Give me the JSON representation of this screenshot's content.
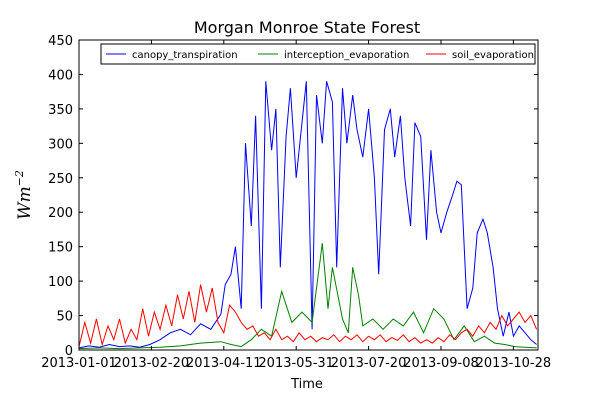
{
  "chart_data": {
    "type": "line",
    "title": "Morgan Monroe State Forest",
    "xlabel": "Time",
    "ylabel": "Wm",
    "ylabel_superscript": "−2",
    "x_start": "2013-01-01",
    "x_end": "2013-11-14",
    "ylim": [
      0,
      450
    ],
    "yticks": [
      0,
      50,
      100,
      150,
      200,
      250,
      300,
      350,
      400,
      450
    ],
    "xticks": [
      "2013-01-01",
      "2013-02-20",
      "2013-04-11",
      "2013-05-31",
      "2013-07-20",
      "2013-09-08",
      "2013-10-28"
    ],
    "legend_position": "top",
    "grid": false,
    "series": [
      {
        "name": "canopy_transpiration",
        "color": "#0000ff",
        "points": [
          [
            "2013-01-01",
            3
          ],
          [
            "2013-01-08",
            6
          ],
          [
            "2013-01-15",
            4
          ],
          [
            "2013-01-22",
            8
          ],
          [
            "2013-01-29",
            5
          ],
          [
            "2013-02-05",
            6
          ],
          [
            "2013-02-12",
            4
          ],
          [
            "2013-02-19",
            8
          ],
          [
            "2013-02-26",
            15
          ],
          [
            "2013-03-05",
            25
          ],
          [
            "2013-03-12",
            30
          ],
          [
            "2013-03-19",
            22
          ],
          [
            "2013-03-26",
            38
          ],
          [
            "2013-04-02",
            30
          ],
          [
            "2013-04-09",
            52
          ],
          [
            "2013-04-12",
            95
          ],
          [
            "2013-04-16",
            110
          ],
          [
            "2013-04-19",
            150
          ],
          [
            "2013-04-23",
            60
          ],
          [
            "2013-04-26",
            300
          ],
          [
            "2013-04-30",
            180
          ],
          [
            "2013-05-03",
            340
          ],
          [
            "2013-05-07",
            60
          ],
          [
            "2013-05-10",
            390
          ],
          [
            "2013-05-14",
            290
          ],
          [
            "2013-05-17",
            350
          ],
          [
            "2013-05-20",
            120
          ],
          [
            "2013-05-24",
            310
          ],
          [
            "2013-05-27",
            380
          ],
          [
            "2013-05-31",
            250
          ],
          [
            "2013-06-04",
            330
          ],
          [
            "2013-06-07",
            390
          ],
          [
            "2013-06-11",
            30
          ],
          [
            "2013-06-14",
            370
          ],
          [
            "2013-06-18",
            300
          ],
          [
            "2013-06-21",
            390
          ],
          [
            "2013-06-25",
            360
          ],
          [
            "2013-06-28",
            120
          ],
          [
            "2013-07-02",
            380
          ],
          [
            "2013-07-05",
            300
          ],
          [
            "2013-07-09",
            370
          ],
          [
            "2013-07-12",
            320
          ],
          [
            "2013-07-16",
            280
          ],
          [
            "2013-07-20",
            350
          ],
          [
            "2013-07-24",
            250
          ],
          [
            "2013-07-27",
            110
          ],
          [
            "2013-07-31",
            320
          ],
          [
            "2013-08-04",
            350
          ],
          [
            "2013-08-07",
            280
          ],
          [
            "2013-08-11",
            340
          ],
          [
            "2013-08-14",
            250
          ],
          [
            "2013-08-18",
            180
          ],
          [
            "2013-08-21",
            330
          ],
          [
            "2013-08-25",
            310
          ],
          [
            "2013-08-29",
            160
          ],
          [
            "2013-09-01",
            290
          ],
          [
            "2013-09-05",
            200
          ],
          [
            "2013-09-08",
            170
          ],
          [
            "2013-09-12",
            200
          ],
          [
            "2013-09-16",
            225
          ],
          [
            "2013-09-19",
            245
          ],
          [
            "2013-09-22",
            240
          ],
          [
            "2013-09-26",
            60
          ],
          [
            "2013-09-30",
            90
          ],
          [
            "2013-10-03",
            170
          ],
          [
            "2013-10-07",
            190
          ],
          [
            "2013-10-10",
            170
          ],
          [
            "2013-10-14",
            120
          ],
          [
            "2013-10-17",
            60
          ],
          [
            "2013-10-21",
            20
          ],
          [
            "2013-10-25",
            55
          ],
          [
            "2013-10-28",
            20
          ],
          [
            "2013-11-01",
            35
          ],
          [
            "2013-11-05",
            25
          ],
          [
            "2013-11-09",
            15
          ],
          [
            "2013-11-13",
            8
          ]
        ]
      },
      {
        "name": "interception_evaporation",
        "color": "#008000",
        "points": [
          [
            "2013-01-01",
            2
          ],
          [
            "2013-01-15",
            3
          ],
          [
            "2013-01-29",
            2
          ],
          [
            "2013-02-12",
            3
          ],
          [
            "2013-02-26",
            4
          ],
          [
            "2013-03-12",
            6
          ],
          [
            "2013-03-26",
            10
          ],
          [
            "2013-04-09",
            12
          ],
          [
            "2013-04-16",
            8
          ],
          [
            "2013-04-23",
            5
          ],
          [
            "2013-04-30",
            15
          ],
          [
            "2013-05-07",
            30
          ],
          [
            "2013-05-14",
            20
          ],
          [
            "2013-05-21",
            85
          ],
          [
            "2013-05-28",
            40
          ],
          [
            "2013-06-04",
            55
          ],
          [
            "2013-06-11",
            40
          ],
          [
            "2013-06-18",
            155
          ],
          [
            "2013-06-22",
            60
          ],
          [
            "2013-06-25",
            120
          ],
          [
            "2013-07-02",
            45
          ],
          [
            "2013-07-06",
            25
          ],
          [
            "2013-07-09",
            120
          ],
          [
            "2013-07-13",
            80
          ],
          [
            "2013-07-16",
            35
          ],
          [
            "2013-07-23",
            45
          ],
          [
            "2013-07-30",
            30
          ],
          [
            "2013-08-06",
            45
          ],
          [
            "2013-08-13",
            35
          ],
          [
            "2013-08-20",
            55
          ],
          [
            "2013-08-27",
            25
          ],
          [
            "2013-09-03",
            60
          ],
          [
            "2013-09-10",
            45
          ],
          [
            "2013-09-17",
            15
          ],
          [
            "2013-09-24",
            35
          ],
          [
            "2013-10-01",
            12
          ],
          [
            "2013-10-08",
            20
          ],
          [
            "2013-10-15",
            10
          ],
          [
            "2013-10-22",
            8
          ],
          [
            "2013-10-29",
            5
          ],
          [
            "2013-11-05",
            4
          ],
          [
            "2013-11-13",
            3
          ]
        ]
      },
      {
        "name": "soil_evaporation",
        "color": "#ff0000",
        "points": [
          [
            "2013-01-01",
            5
          ],
          [
            "2013-01-05",
            40
          ],
          [
            "2013-01-09",
            10
          ],
          [
            "2013-01-13",
            45
          ],
          [
            "2013-01-17",
            8
          ],
          [
            "2013-01-21",
            35
          ],
          [
            "2013-01-25",
            15
          ],
          [
            "2013-01-29",
            45
          ],
          [
            "2013-02-02",
            10
          ],
          [
            "2013-02-06",
            30
          ],
          [
            "2013-02-10",
            15
          ],
          [
            "2013-02-14",
            60
          ],
          [
            "2013-02-18",
            20
          ],
          [
            "2013-02-22",
            55
          ],
          [
            "2013-02-26",
            30
          ],
          [
            "2013-03-02",
            65
          ],
          [
            "2013-03-06",
            35
          ],
          [
            "2013-03-10",
            80
          ],
          [
            "2013-03-14",
            45
          ],
          [
            "2013-03-18",
            85
          ],
          [
            "2013-03-22",
            40
          ],
          [
            "2013-03-26",
            95
          ],
          [
            "2013-03-30",
            55
          ],
          [
            "2013-04-03",
            90
          ],
          [
            "2013-04-07",
            40
          ],
          [
            "2013-04-11",
            25
          ],
          [
            "2013-04-15",
            65
          ],
          [
            "2013-04-19",
            55
          ],
          [
            "2013-04-23",
            40
          ],
          [
            "2013-04-27",
            30
          ],
          [
            "2013-05-01",
            35
          ],
          [
            "2013-05-05",
            20
          ],
          [
            "2013-05-09",
            25
          ],
          [
            "2013-05-13",
            15
          ],
          [
            "2013-05-17",
            30
          ],
          [
            "2013-05-21",
            15
          ],
          [
            "2013-05-25",
            20
          ],
          [
            "2013-05-29",
            12
          ],
          [
            "2013-06-02",
            25
          ],
          [
            "2013-06-06",
            15
          ],
          [
            "2013-06-10",
            20
          ],
          [
            "2013-06-14",
            12
          ],
          [
            "2013-06-18",
            18
          ],
          [
            "2013-06-22",
            15
          ],
          [
            "2013-06-26",
            22
          ],
          [
            "2013-06-30",
            12
          ],
          [
            "2013-07-04",
            20
          ],
          [
            "2013-07-08",
            15
          ],
          [
            "2013-07-12",
            22
          ],
          [
            "2013-07-16",
            12
          ],
          [
            "2013-07-20",
            20
          ],
          [
            "2013-07-24",
            15
          ],
          [
            "2013-07-28",
            22
          ],
          [
            "2013-08-01",
            12
          ],
          [
            "2013-08-05",
            18
          ],
          [
            "2013-08-09",
            14
          ],
          [
            "2013-08-13",
            22
          ],
          [
            "2013-08-17",
            12
          ],
          [
            "2013-08-21",
            18
          ],
          [
            "2013-08-25",
            10
          ],
          [
            "2013-08-29",
            15
          ],
          [
            "2013-09-02",
            10
          ],
          [
            "2013-09-06",
            18
          ],
          [
            "2013-09-10",
            12
          ],
          [
            "2013-09-14",
            22
          ],
          [
            "2013-09-18",
            15
          ],
          [
            "2013-09-22",
            25
          ],
          [
            "2013-09-26",
            30
          ],
          [
            "2013-09-30",
            20
          ],
          [
            "2013-10-04",
            35
          ],
          [
            "2013-10-08",
            25
          ],
          [
            "2013-10-12",
            40
          ],
          [
            "2013-10-16",
            30
          ],
          [
            "2013-10-20",
            50
          ],
          [
            "2013-10-24",
            35
          ],
          [
            "2013-10-28",
            45
          ],
          [
            "2013-11-01",
            55
          ],
          [
            "2013-11-05",
            40
          ],
          [
            "2013-11-09",
            50
          ],
          [
            "2013-11-13",
            30
          ]
        ]
      }
    ]
  }
}
